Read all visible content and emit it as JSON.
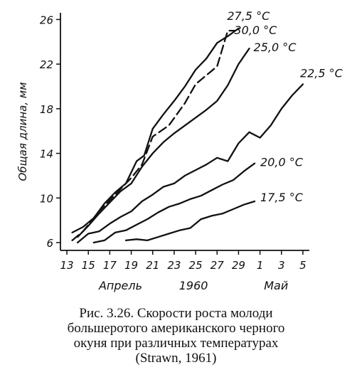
{
  "chart_data": {
    "type": "line",
    "ylabel": "Общая длина, мм",
    "ylim": [
      6,
      26
    ],
    "yticks": [
      6,
      10,
      14,
      18,
      22,
      26
    ],
    "xticks": [
      {
        "label": "13",
        "day": 13
      },
      {
        "label": "15",
        "day": 15
      },
      {
        "label": "17",
        "day": 17
      },
      {
        "label": "19",
        "day": 19
      },
      {
        "label": "21",
        "day": 21
      },
      {
        "label": "23",
        "day": 23
      },
      {
        "label": "25",
        "day": 25
      },
      {
        "label": "27",
        "day": 27
      },
      {
        "label": "29",
        "day": 29
      },
      {
        "label": "1",
        "day": 31
      },
      {
        "label": "3",
        "day": 33
      },
      {
        "label": "5",
        "day": 35
      }
    ],
    "xlabels": {
      "left": "Апрель",
      "center": "1960",
      "right": "Май"
    },
    "series": [
      {
        "name": "27,5 °C",
        "dashed": true,
        "x": [
          13.5,
          14.5,
          16,
          17.5,
          19,
          20,
          21,
          22.5,
          24,
          25,
          26,
          27,
          28,
          28.7
        ],
        "y": [
          6.2,
          7,
          8.8,
          10.3,
          11.8,
          13,
          15.5,
          16.5,
          18.5,
          20.2,
          21,
          21.8,
          25,
          25
        ]
      },
      {
        "name": "30,0 °C",
        "dashed": false,
        "x": [
          13.5,
          14.5,
          15.5,
          16.5,
          17.5,
          18.5,
          19.5,
          20.2,
          21,
          22,
          23,
          24,
          25,
          26,
          27,
          28,
          29
        ],
        "y": [
          6.9,
          7.4,
          8.2,
          9.5,
          10.5,
          11.3,
          13.3,
          13.8,
          16.2,
          17.5,
          18.7,
          20,
          21.5,
          22.5,
          23.9,
          24.5,
          25.2
        ]
      },
      {
        "name": "25,0 °C",
        "dashed": false,
        "x": [
          14,
          15,
          16,
          17,
          18,
          19,
          20,
          21,
          22,
          23,
          24,
          25,
          26,
          27,
          28,
          29,
          30
        ],
        "y": [
          6.5,
          7.5,
          8.6,
          9.6,
          10.6,
          11.3,
          12.8,
          14,
          15,
          15.8,
          16.5,
          17.2,
          17.9,
          18.7,
          20.1,
          22,
          23.4
        ]
      },
      {
        "name": "22,5 °C",
        "dashed": false,
        "x": [
          14,
          15,
          16,
          17,
          18,
          19,
          20,
          21,
          22,
          23,
          24,
          25,
          26,
          27,
          28,
          29,
          30,
          31,
          32,
          33,
          34,
          35
        ],
        "y": [
          6,
          6.8,
          7,
          7.7,
          8.3,
          8.8,
          9.7,
          10.3,
          11,
          11.3,
          12,
          12.5,
          13,
          13.6,
          13.3,
          14.9,
          15.9,
          15.4,
          16.5,
          18,
          19.2,
          20.2
        ]
      },
      {
        "name": "20,0 °C",
        "dashed": false,
        "x": [
          15.5,
          16.5,
          17.5,
          18.5,
          19.5,
          20.5,
          21.5,
          22.5,
          23.5,
          24.5,
          25.5,
          26.5,
          27.5,
          28.5,
          29.5,
          30.5
        ],
        "y": [
          6,
          6.2,
          6.9,
          7.1,
          7.6,
          8.1,
          8.7,
          9.2,
          9.5,
          9.9,
          10.2,
          10.7,
          11.2,
          11.6,
          12.4,
          13.1
        ]
      },
      {
        "name": "17,5 °C",
        "dashed": false,
        "x": [
          18.5,
          19.5,
          20.5,
          21.5,
          22.5,
          23.5,
          24.5,
          25.5,
          26.5,
          27.5,
          28.5,
          29.5,
          30.5
        ],
        "y": [
          6.2,
          6.3,
          6.2,
          6.5,
          6.8,
          7.1,
          7.3,
          8.1,
          8.4,
          8.6,
          9,
          9.4,
          9.7
        ]
      }
    ]
  },
  "caption": {
    "line1": "Рис. 3.26. Скорости роста молоди",
    "line2": "большеротого американского черного",
    "line3": "окуня при различных температурах",
    "line4": "(Strawn, 1961)"
  }
}
